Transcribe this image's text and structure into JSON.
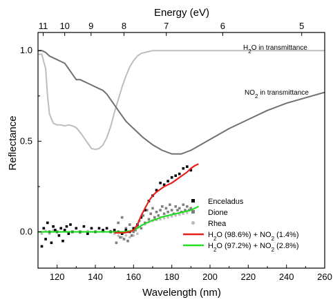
{
  "chart_data": {
    "type": "line",
    "xlabel": "Wavelength (nm)",
    "ylabel": "Reflectance",
    "top_axis_label": "Energy (eV)",
    "xlim": [
      110,
      260
    ],
    "ylim": [
      -0.2,
      1.1
    ],
    "x_ticks": [
      120,
      140,
      160,
      180,
      200,
      220,
      240,
      260
    ],
    "y_ticks": [
      0.0,
      0.5,
      1.0
    ],
    "x_tick_labels": [
      "120",
      "140",
      "160",
      "180",
      "200",
      "220",
      "240",
      "260"
    ],
    "y_tick_labels": [
      "0.0",
      "0.5",
      "1.0"
    ],
    "top_ticks": [
      {
        "label": "11",
        "energy_eV": 11
      },
      {
        "label": "10",
        "energy_eV": 10
      },
      {
        "label": "9",
        "energy_eV": 9
      },
      {
        "label": "8",
        "energy_eV": 8
      },
      {
        "label": "7",
        "energy_eV": 7
      },
      {
        "label": "6",
        "energy_eV": 6
      },
      {
        "label": "5",
        "energy_eV": 5
      }
    ],
    "annotations": [
      {
        "text_main": "H",
        "text_sub": "2",
        "text_rest": "O in transmittance",
        "series": "h2o_transmittance"
      },
      {
        "text_main": "NO",
        "text_sub": "2",
        "text_rest": " in transmittance",
        "series": "no2_transmittance"
      }
    ],
    "legend": {
      "position": "bottom-right",
      "entries": [
        {
          "key": "enceladus",
          "label": "Enceladus",
          "symbol": "square",
          "color": "#000000"
        },
        {
          "key": "dione",
          "label": "Dione",
          "symbol": "square",
          "color": "#808080"
        },
        {
          "key": "rhea",
          "label": "Rhea",
          "symbol": "circle",
          "color": "#bdbdbd"
        },
        {
          "key": "fit1",
          "label_parts": [
            "H",
            "2",
            "O (98.6%) + NO",
            "2",
            " (1.4%)"
          ],
          "symbol": "line",
          "color": "#e8201c"
        },
        {
          "key": "fit2",
          "label_parts": [
            "H",
            "2",
            "O (97.2%) + NO",
            "2",
            " (2.8%)"
          ],
          "symbol": "line",
          "color": "#22dd22"
        }
      ]
    },
    "series": [
      {
        "key": "h2o_transmittance",
        "kind": "line",
        "color": "#bdbdbd",
        "x": [
          110,
          112,
          114,
          115,
          116,
          118,
          120,
          122,
          124,
          126,
          128,
          130,
          132,
          134,
          136,
          138,
          140,
          142,
          144,
          146,
          148,
          150,
          152,
          154,
          156,
          158,
          160,
          162,
          164,
          166,
          168,
          170,
          175,
          180,
          190,
          200,
          220,
          240,
          260
        ],
        "y": [
          0.98,
          0.98,
          0.9,
          0.75,
          0.65,
          0.6,
          0.59,
          0.59,
          0.585,
          0.59,
          0.585,
          0.575,
          0.55,
          0.52,
          0.49,
          0.46,
          0.455,
          0.46,
          0.48,
          0.52,
          0.58,
          0.66,
          0.73,
          0.8,
          0.86,
          0.91,
          0.945,
          0.97,
          0.985,
          0.99,
          0.995,
          1.0,
          1.0,
          1.0,
          1.0,
          1.0,
          1.0,
          1.0,
          1.0
        ]
      },
      {
        "key": "no2_transmittance",
        "kind": "line",
        "color": "#707070",
        "x": [
          110,
          112,
          114,
          116,
          118,
          120,
          122,
          124,
          126,
          128,
          130,
          132,
          134,
          136,
          138,
          140,
          142,
          144,
          146,
          148,
          150,
          152,
          154,
          156,
          158,
          160,
          165,
          170,
          175,
          180,
          185,
          190,
          195,
          200,
          210,
          220,
          230,
          240,
          250,
          260
        ],
        "y": [
          1.0,
          1.0,
          0.99,
          0.97,
          0.96,
          0.95,
          0.94,
          0.93,
          0.9,
          0.87,
          0.84,
          0.84,
          0.83,
          0.82,
          0.81,
          0.8,
          0.79,
          0.78,
          0.76,
          0.73,
          0.7,
          0.67,
          0.64,
          0.61,
          0.59,
          0.57,
          0.52,
          0.48,
          0.45,
          0.43,
          0.43,
          0.45,
          0.48,
          0.51,
          0.57,
          0.62,
          0.67,
          0.71,
          0.74,
          0.77
        ]
      },
      {
        "key": "rhea",
        "kind": "scatter",
        "color": "#bdbdbd",
        "x": [
          112,
          114,
          116,
          118,
          120,
          124,
          128,
          132,
          136,
          140,
          144,
          148,
          150,
          152,
          154,
          156,
          158,
          160,
          162,
          164,
          166,
          168,
          170,
          172,
          174,
          176,
          178,
          180,
          182,
          184,
          186,
          188
        ],
        "y": [
          -0.01,
          0.005,
          -0.01,
          0.01,
          0.0,
          0.005,
          0.0,
          -0.005,
          0.005,
          0.0,
          0.0,
          0.005,
          -0.01,
          -0.02,
          -0.03,
          -0.02,
          -0.03,
          -0.02,
          -0.01,
          0.02,
          0.04,
          0.055,
          0.06,
          0.065,
          0.07,
          0.075,
          0.08,
          0.085,
          0.09,
          0.095,
          0.1,
          0.105
        ]
      },
      {
        "key": "dione",
        "kind": "scatter",
        "color": "#808080",
        "x": [
          150,
          151,
          152,
          153,
          154,
          155,
          156,
          157,
          158,
          159,
          160,
          161,
          162,
          163,
          164,
          165,
          166,
          167,
          168,
          169,
          170,
          171,
          172,
          173,
          174,
          175,
          176,
          177,
          178,
          179,
          180,
          181,
          182,
          183,
          184,
          185,
          186,
          187,
          188,
          189,
          190
        ],
        "y": [
          0.01,
          -0.06,
          0.05,
          -0.03,
          0.08,
          -0.04,
          0.02,
          -0.05,
          0.04,
          -0.02,
          0.0,
          0.01,
          0.03,
          0.06,
          0.02,
          0.09,
          0.05,
          0.12,
          0.07,
          0.1,
          0.13,
          0.08,
          0.11,
          0.09,
          0.12,
          0.14,
          0.1,
          0.13,
          0.11,
          0.15,
          0.12,
          0.1,
          0.14,
          0.12,
          0.13,
          0.11,
          0.15,
          0.12,
          0.14,
          0.12,
          0.13
        ]
      },
      {
        "key": "enceladus",
        "kind": "scatter",
        "color": "#000000",
        "x": [
          112,
          113,
          114,
          115,
          116,
          117,
          118,
          119,
          120,
          121,
          122,
          123,
          124,
          125,
          126,
          127,
          128,
          130,
          132,
          134,
          136,
          138,
          140,
          142,
          144,
          146,
          148,
          150,
          152,
          154,
          156,
          158,
          160,
          162,
          164,
          166,
          168,
          170,
          172,
          174,
          176,
          178,
          180,
          182,
          184,
          186,
          188,
          190
        ],
        "y": [
          -0.08,
          0.02,
          -0.04,
          0.05,
          0.0,
          -0.06,
          0.03,
          0.01,
          0.0,
          -0.02,
          0.02,
          -0.05,
          0.01,
          0.03,
          -0.01,
          0.04,
          0.0,
          0.02,
          0.0,
          0.03,
          -0.01,
          0.02,
          0.0,
          0.02,
          0.01,
          0.02,
          0.0,
          0.01,
          0.0,
          -0.01,
          0.01,
          0.0,
          0.02,
          0.04,
          0.08,
          0.12,
          0.17,
          0.2,
          0.23,
          0.27,
          0.26,
          0.28,
          0.3,
          0.31,
          0.32,
          0.35,
          0.36,
          0.34
        ]
      },
      {
        "key": "fit1",
        "kind": "line",
        "color": "#e8201c",
        "x": [
          150,
          155,
          158,
          160,
          162,
          164,
          166,
          168,
          170,
          172,
          174,
          176,
          178,
          180,
          182,
          184,
          186,
          188,
          190,
          192,
          194
        ],
        "y": [
          -0.005,
          -0.005,
          0.0,
          0.01,
          0.04,
          0.09,
          0.13,
          0.17,
          0.2,
          0.22,
          0.235,
          0.25,
          0.26,
          0.27,
          0.285,
          0.3,
          0.315,
          0.33,
          0.35,
          0.365,
          0.375
        ]
      },
      {
        "key": "fit2",
        "kind": "line",
        "color": "#22dd22",
        "x": [
          110,
          120,
          130,
          140,
          150,
          155,
          158,
          160,
          162,
          164,
          166,
          168,
          170,
          172,
          174,
          176,
          178,
          180,
          182,
          184,
          186,
          188,
          190,
          192,
          194
        ],
        "y": [
          0.0,
          0.0,
          0.0,
          0.0,
          0.0,
          0.0,
          0.005,
          0.01,
          0.02,
          0.035,
          0.045,
          0.055,
          0.065,
          0.07,
          0.08,
          0.085,
          0.09,
          0.095,
          0.1,
          0.105,
          0.11,
          0.115,
          0.12,
          0.13,
          0.14
        ]
      }
    ]
  }
}
